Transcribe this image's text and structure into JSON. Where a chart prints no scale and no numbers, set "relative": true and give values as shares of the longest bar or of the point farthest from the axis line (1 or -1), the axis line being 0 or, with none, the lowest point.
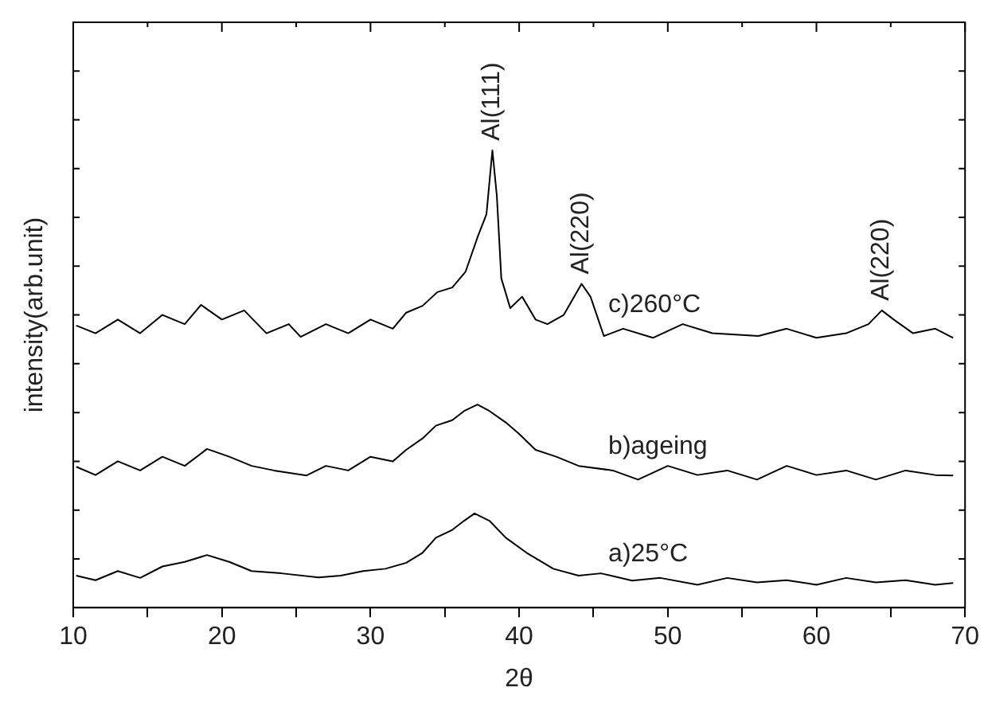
{
  "chart_data": {
    "type": "line",
    "xlabel": "2θ",
    "ylabel": "intensity(arb.unit)",
    "relative": true,
    "xlim": [
      10,
      70
    ],
    "xticks": [
      10,
      {
        "value": 15,
        "label": null
      },
      20,
      {
        "value": 25,
        "label": null
      },
      30,
      {
        "value": 35,
        "label": null
      },
      40,
      {
        "value": 45,
        "label": null
      },
      50,
      {
        "value": 55,
        "label": null
      },
      60,
      {
        "value": 65,
        "label": null
      },
      70
    ],
    "grid": false,
    "legend": false,
    "marker": "none",
    "line_style": "solid",
    "series": [
      {
        "name": "c)260°C",
        "color": "#000000",
        "x": [
          10.2,
          11.5,
          13,
          14.5,
          16,
          17.5,
          18.6,
          20,
          21.5,
          23,
          24.5,
          25.3,
          27,
          28.5,
          30,
          31.5,
          32.4,
          33.5,
          34.5,
          35.5,
          36.4,
          37.2,
          37.8,
          38.2,
          38.5,
          38.8,
          39.4,
          40.2,
          41.1,
          41.9,
          43,
          44.2,
          44.8,
          45.7,
          47,
          49,
          51,
          53,
          56.1,
          58,
          60,
          62,
          63.5,
          64.4,
          65.2,
          66.5,
          68,
          69.2
        ],
        "values": [
          0.617,
          0.6,
          0.63,
          0.6,
          0.64,
          0.62,
          0.662,
          0.63,
          0.65,
          0.6,
          0.62,
          0.592,
          0.62,
          0.6,
          0.63,
          0.61,
          0.645,
          0.66,
          0.69,
          0.7,
          0.735,
          0.81,
          0.86,
          1,
          0.9,
          0.72,
          0.655,
          0.68,
          0.63,
          0.62,
          0.64,
          0.708,
          0.68,
          0.594,
          0.61,
          0.59,
          0.62,
          0.6,
          0.594,
          0.61,
          0.59,
          0.6,
          0.62,
          0.65,
          0.63,
          0.6,
          0.61,
          0.59
        ]
      },
      {
        "name": "b)ageing",
        "color": "#000000",
        "x": [
          10.2,
          11.5,
          13,
          14.5,
          16,
          17.5,
          19,
          20.5,
          22,
          23.5,
          25.7,
          27,
          28.5,
          30,
          31.5,
          32.4,
          33.5,
          34.4,
          35.5,
          36.3,
          37.2,
          38,
          39.1,
          40,
          41.1,
          42.5,
          44,
          46.3,
          48,
          50,
          52,
          54,
          56,
          58,
          60,
          62,
          64,
          66,
          68,
          69.2
        ],
        "values": [
          0.308,
          0.29,
          0.32,
          0.3,
          0.33,
          0.31,
          0.347,
          0.33,
          0.31,
          0.3,
          0.289,
          0.31,
          0.3,
          0.33,
          0.32,
          0.345,
          0.37,
          0.398,
          0.41,
          0.43,
          0.444,
          0.43,
          0.405,
          0.38,
          0.345,
          0.33,
          0.31,
          0.3,
          0.28,
          0.31,
          0.29,
          0.3,
          0.28,
          0.31,
          0.29,
          0.3,
          0.28,
          0.3,
          0.29,
          0.289
        ]
      },
      {
        "name": "a)25°C",
        "color": "#000000",
        "x": [
          10.2,
          11.5,
          13,
          14.5,
          16,
          17.5,
          19,
          20.5,
          22,
          24,
          26.5,
          28,
          29.5,
          31,
          32.4,
          33.5,
          34.4,
          35.5,
          36.3,
          37,
          38,
          39.1,
          40.5,
          42.3,
          44,
          45.5,
          47.6,
          49.5,
          52,
          54,
          56,
          58,
          60,
          62,
          64,
          66,
          68,
          69.2
        ],
        "values": [
          0.07,
          0.06,
          0.08,
          0.065,
          0.09,
          0.1,
          0.115,
          0.1,
          0.08,
          0.075,
          0.066,
          0.07,
          0.08,
          0.085,
          0.098,
          0.12,
          0.153,
          0.17,
          0.19,
          0.206,
          0.19,
          0.153,
          0.12,
          0.085,
          0.07,
          0.075,
          0.059,
          0.065,
          0.05,
          0.065,
          0.055,
          0.06,
          0.05,
          0.065,
          0.055,
          0.06,
          0.05,
          0.054
        ]
      }
    ],
    "annotations": [
      {
        "text": "Al(111)",
        "x": 38.2,
        "y": 1
      },
      {
        "text": "Al(220)",
        "x": 44.2,
        "y": 0.708
      },
      {
        "text": "Al(220)",
        "x": 64.4,
        "y": 0.65
      }
    ]
  }
}
